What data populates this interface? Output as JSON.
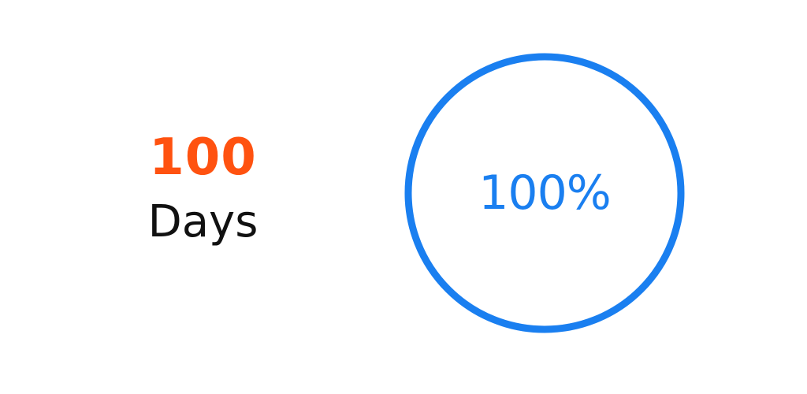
{
  "streak": {
    "count": "100",
    "unit": "Days"
  },
  "progress": {
    "label": "100%",
    "value": 1.0
  },
  "colors": {
    "count": "#ff5210",
    "unit": "#111111",
    "ring": "#1a7ff0",
    "background": "#ffffff"
  }
}
